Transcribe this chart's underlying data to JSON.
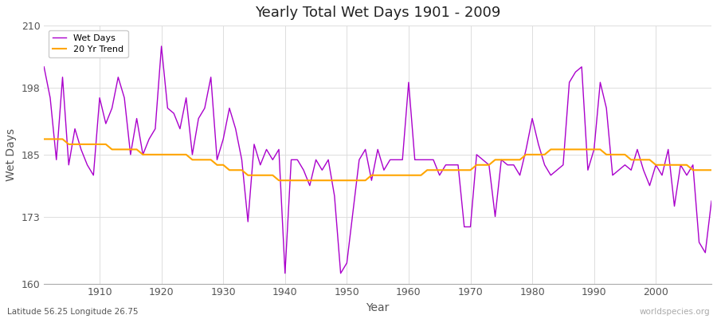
{
  "title": "Yearly Total Wet Days 1901 - 2009",
  "xlabel": "Year",
  "ylabel": "Wet Days",
  "subtitle": "Latitude 56.25 Longitude 26.75",
  "watermark": "worldspecies.org",
  "ylim": [
    160,
    210
  ],
  "yticks": [
    160,
    173,
    185,
    198,
    210
  ],
  "line_color": "#aa00cc",
  "trend_color": "#FFA500",
  "bg_color": "#ffffff",
  "grid_color": "#dddddd",
  "years": [
    1901,
    1902,
    1903,
    1904,
    1905,
    1906,
    1907,
    1908,
    1909,
    1910,
    1911,
    1912,
    1913,
    1914,
    1915,
    1916,
    1917,
    1918,
    1919,
    1920,
    1921,
    1922,
    1923,
    1924,
    1925,
    1926,
    1927,
    1928,
    1929,
    1930,
    1931,
    1932,
    1933,
    1934,
    1935,
    1936,
    1937,
    1938,
    1939,
    1940,
    1941,
    1942,
    1943,
    1944,
    1945,
    1946,
    1947,
    1948,
    1949,
    1950,
    1951,
    1952,
    1953,
    1954,
    1955,
    1956,
    1957,
    1958,
    1959,
    1960,
    1961,
    1962,
    1963,
    1964,
    1965,
    1966,
    1967,
    1968,
    1969,
    1970,
    1971,
    1972,
    1973,
    1974,
    1975,
    1976,
    1977,
    1978,
    1979,
    1980,
    1981,
    1982,
    1983,
    1984,
    1985,
    1986,
    1987,
    1988,
    1989,
    1990,
    1991,
    1992,
    1993,
    1994,
    1995,
    1996,
    1997,
    1998,
    1999,
    2000,
    2001,
    2002,
    2003,
    2004,
    2005,
    2006,
    2007,
    2008,
    2009
  ],
  "wet_days": [
    202,
    196,
    184,
    200,
    183,
    190,
    186,
    183,
    181,
    196,
    191,
    194,
    200,
    196,
    185,
    192,
    185,
    188,
    190,
    206,
    194,
    193,
    190,
    196,
    185,
    192,
    194,
    200,
    184,
    188,
    194,
    190,
    184,
    172,
    187,
    183,
    186,
    184,
    186,
    162,
    184,
    184,
    182,
    179,
    184,
    182,
    184,
    177,
    162,
    164,
    174,
    184,
    186,
    180,
    186,
    182,
    184,
    184,
    184,
    199,
    184,
    184,
    184,
    184,
    181,
    183,
    183,
    183,
    171,
    171,
    185,
    184,
    183,
    173,
    184,
    183,
    183,
    181,
    186,
    192,
    187,
    183,
    181,
    182,
    183,
    199,
    201,
    202,
    182,
    186,
    199,
    194,
    181,
    182,
    183,
    182,
    186,
    182,
    179,
    183,
    181,
    186,
    175,
    183,
    181,
    183,
    168,
    166,
    176
  ],
  "trend": [
    188,
    188,
    188,
    188,
    187,
    187,
    187,
    187,
    187,
    187,
    187,
    186,
    186,
    186,
    186,
    186,
    185,
    185,
    185,
    185,
    185,
    185,
    185,
    185,
    184,
    184,
    184,
    184,
    183,
    183,
    182,
    182,
    182,
    181,
    181,
    181,
    181,
    181,
    180,
    180,
    180,
    180,
    180,
    180,
    180,
    180,
    180,
    180,
    180,
    180,
    180,
    180,
    180,
    181,
    181,
    181,
    181,
    181,
    181,
    181,
    181,
    181,
    182,
    182,
    182,
    182,
    182,
    182,
    182,
    182,
    183,
    183,
    183,
    184,
    184,
    184,
    184,
    184,
    185,
    185,
    185,
    185,
    186,
    186,
    186,
    186,
    186,
    186,
    186,
    186,
    186,
    185,
    185,
    185,
    185,
    184,
    184,
    184,
    184,
    183,
    183,
    183,
    183,
    183,
    183,
    182,
    182,
    182,
    182
  ]
}
